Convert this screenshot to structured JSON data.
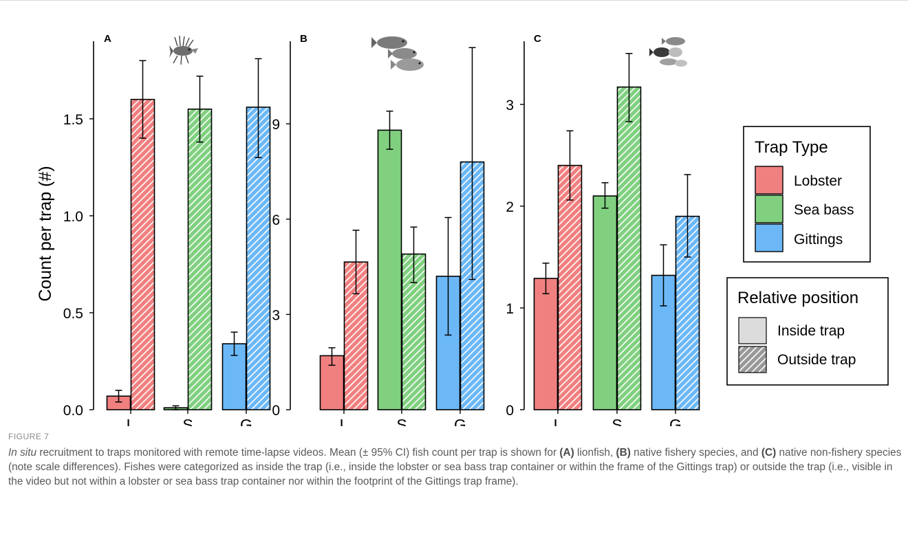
{
  "figure_label": "FIGURE 7",
  "caption": {
    "lead_italic": "In situ",
    "part1": " recruitment to traps monitored with remote time-lapse videos. Mean (± 95% CI) fish count per trap is shown for ",
    "bold_a": "(A)",
    "part2": " lionfish, ",
    "bold_b": "(B)",
    "part3": " native fishery species, and ",
    "bold_c": "(C)",
    "part4": " native non-fishery species (note scale differences). Fishes were categorized as inside the trap (i.e., inside the lobster or sea bass trap container or within the frame of the Gittings trap) or outside the trap (i.e., visible in the video but not within a lobster or sea bass trap container nor within the footprint of the Gittings trap frame)."
  },
  "colors": {
    "lobster": "#f08080",
    "sea_bass": "#80d080",
    "gittings": "#6cb8f7",
    "inside_legend": "#dcdcdc",
    "outside_legend": "#999999"
  },
  "legend": {
    "trap_type_title": "Trap Type",
    "trap_types": [
      "Lobster",
      "Sea bass",
      "Gittings"
    ],
    "position_title": "Relative position",
    "positions": [
      "Inside trap",
      "Outside trap"
    ]
  },
  "chart_data": [
    {
      "panel": "A",
      "type": "bar",
      "ylabel": "Count per trap (#)",
      "categories": [
        "L",
        "S",
        "G"
      ],
      "ylim": [
        0,
        1.9
      ],
      "yticks": [
        0.0,
        0.5,
        1.0,
        1.5
      ],
      "ytick_labels": [
        "0.0",
        "0.5",
        "1.0",
        "1.5"
      ],
      "series": [
        {
          "name": "Inside trap",
          "values": [
            0.07,
            0.01,
            0.34
          ],
          "ci_low": [
            0.04,
            0.0,
            0.28
          ],
          "ci_high": [
            0.1,
            0.02,
            0.4
          ]
        },
        {
          "name": "Outside trap",
          "values": [
            1.6,
            1.55,
            1.56
          ],
          "ci_low": [
            1.4,
            1.38,
            1.3
          ],
          "ci_high": [
            1.8,
            1.72,
            1.81
          ]
        }
      ]
    },
    {
      "panel": "B",
      "type": "bar",
      "ylabel": "",
      "categories": [
        "L",
        "S",
        "G"
      ],
      "ylim": [
        0,
        11.6
      ],
      "yticks": [
        0,
        3,
        6,
        9
      ],
      "ytick_labels": [
        "0",
        "3",
        "6",
        "9"
      ],
      "series": [
        {
          "name": "Inside trap",
          "values": [
            1.7,
            8.8,
            4.2
          ],
          "ci_low": [
            1.4,
            8.2,
            2.35
          ],
          "ci_high": [
            1.95,
            9.4,
            6.05
          ]
        },
        {
          "name": "Outside trap",
          "values": [
            4.65,
            4.9,
            7.8
          ],
          "ci_low": [
            3.65,
            4.0,
            4.1
          ],
          "ci_high": [
            5.65,
            5.75,
            11.4
          ]
        }
      ]
    },
    {
      "panel": "C",
      "type": "bar",
      "ylabel": "",
      "categories": [
        "L",
        "S",
        "G"
      ],
      "ylim": [
        0,
        3.62
      ],
      "yticks": [
        0,
        1,
        2,
        3
      ],
      "ytick_labels": [
        "0",
        "1",
        "2",
        "3"
      ],
      "series": [
        {
          "name": "Inside trap",
          "values": [
            1.29,
            2.1,
            1.32
          ],
          "ci_low": [
            1.14,
            1.98,
            1.02
          ],
          "ci_high": [
            1.44,
            2.23,
            1.62
          ]
        },
        {
          "name": "Outside trap",
          "values": [
            2.4,
            3.17,
            1.9
          ],
          "ci_low": [
            2.06,
            2.83,
            1.5
          ],
          "ci_high": [
            2.74,
            3.5,
            2.31
          ]
        }
      ]
    }
  ]
}
